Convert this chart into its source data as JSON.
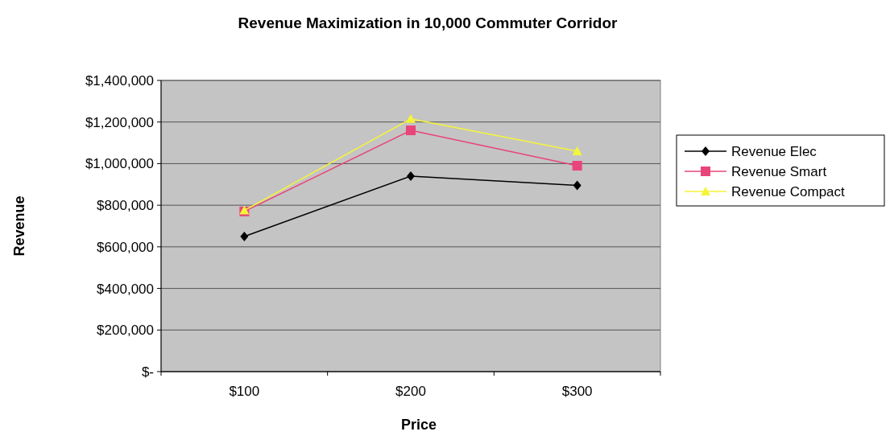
{
  "chart_data": {
    "type": "line",
    "title": "Revenue Maximization in 10,000 Commuter Corridor",
    "xlabel": "Price",
    "ylabel": "Revenue",
    "categories": [
      "$100",
      "$200",
      "$300"
    ],
    "series": [
      {
        "name": "Revenue Elec",
        "color": "#000000",
        "marker": "diamond",
        "values": [
          650000,
          940000,
          895000
        ]
      },
      {
        "name": "Revenue Smart",
        "color": "#e8457a",
        "marker": "square",
        "values": [
          770000,
          1160000,
          990000
        ]
      },
      {
        "name": "Revenue Compact",
        "color": "#f5f53a",
        "marker": "triangle",
        "values": [
          775000,
          1215000,
          1060000
        ]
      }
    ],
    "ylim": [
      0,
      1400000
    ],
    "yticks": [
      {
        "value": 0,
        "label": "$-"
      },
      {
        "value": 200000,
        "label": "$200,000"
      },
      {
        "value": 400000,
        "label": "$400,000"
      },
      {
        "value": 600000,
        "label": "$600,000"
      },
      {
        "value": 800000,
        "label": "$800,000"
      },
      {
        "value": 1000000,
        "label": "$1,000,000"
      },
      {
        "value": 1200000,
        "label": "$1,200,000"
      },
      {
        "value": 1400000,
        "label": "$1,400,000"
      }
    ],
    "grid": "y",
    "legend": "right"
  }
}
